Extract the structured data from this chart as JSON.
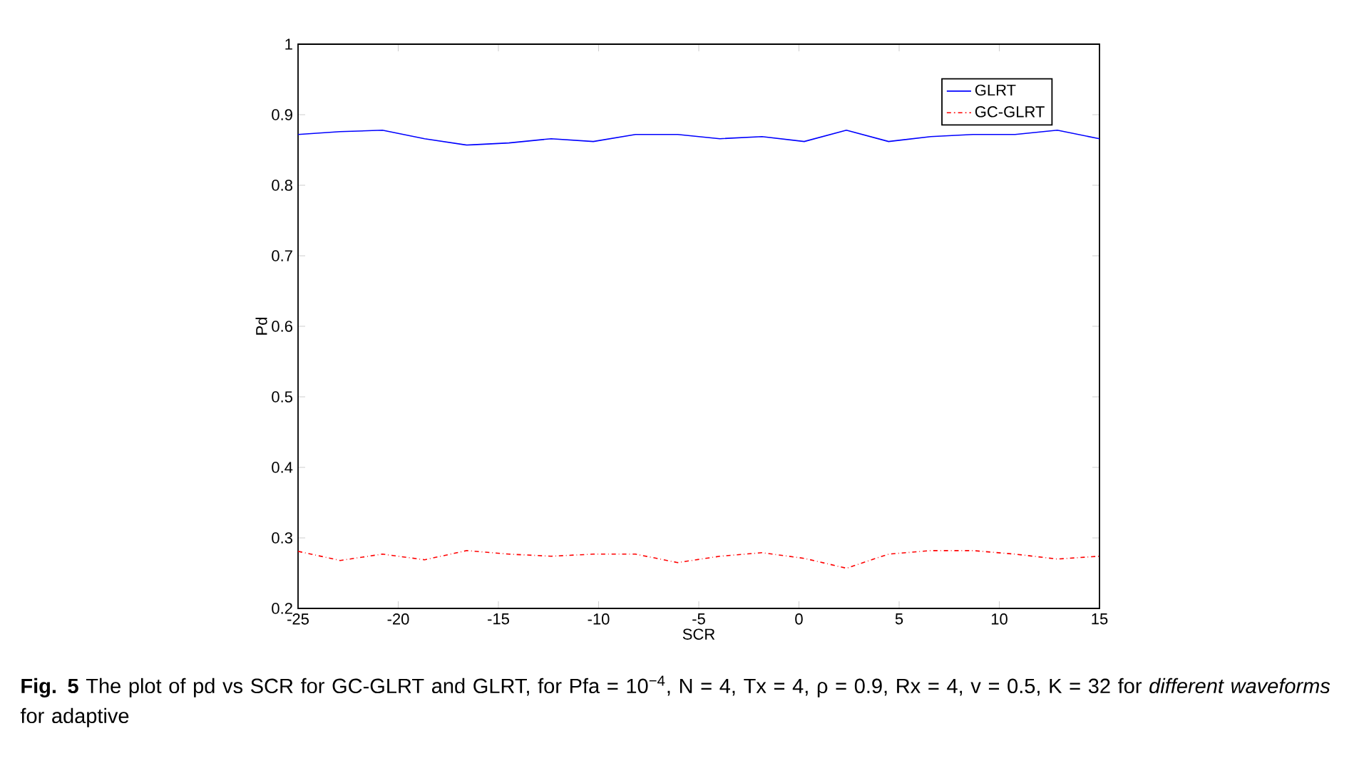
{
  "chart_data": {
    "type": "line",
    "xlabel": "SCR",
    "ylabel": "Pd",
    "x": [
      -25,
      -22.895,
      -20.789,
      -18.684,
      -16.579,
      -14.474,
      -12.368,
      -10.263,
      -8.158,
      -6.053,
      -3.947,
      -1.842,
      0.263,
      2.368,
      4.474,
      6.579,
      8.684,
      10.789,
      12.895,
      15
    ],
    "series": [
      {
        "name": "GLRT",
        "color": "#0000ff",
        "line_style": "solid",
        "values": [
          0.872,
          0.876,
          0.878,
          0.866,
          0.857,
          0.86,
          0.866,
          0.862,
          0.872,
          0.872,
          0.866,
          0.869,
          0.862,
          0.878,
          0.862,
          0.869,
          0.872,
          0.872,
          0.878,
          0.866
        ]
      },
      {
        "name": "GC-GLRT",
        "color": "#ff0000",
        "line_style": "dashdot",
        "values": [
          0.281,
          0.268,
          0.277,
          0.269,
          0.282,
          0.277,
          0.274,
          0.277,
          0.277,
          0.265,
          0.274,
          0.279,
          0.271,
          0.257,
          0.277,
          0.282,
          0.282,
          0.277,
          0.27,
          0.274
        ]
      }
    ],
    "xlim": [
      -25,
      15
    ],
    "ylim": [
      0.2,
      1
    ],
    "xticks": [
      -25,
      -20,
      -15,
      -10,
      -5,
      0,
      5,
      10,
      15
    ],
    "yticks": [
      0.2,
      0.3,
      0.4,
      0.5,
      0.6,
      0.7,
      0.8,
      0.9,
      1
    ],
    "grid": false,
    "legend": "top right",
    "marker": "none",
    "annotations": [
      "**Fig. 5** The plot of pd vs SCR for GC-GLRT and GLRT, for Pfa = 10$^{−4}$, N = 4, Tx = 4, ρ = 0.9, Rx = 4, v = 0.5, K = 32 for *different waveforms* for adaptive"
    ]
  }
}
